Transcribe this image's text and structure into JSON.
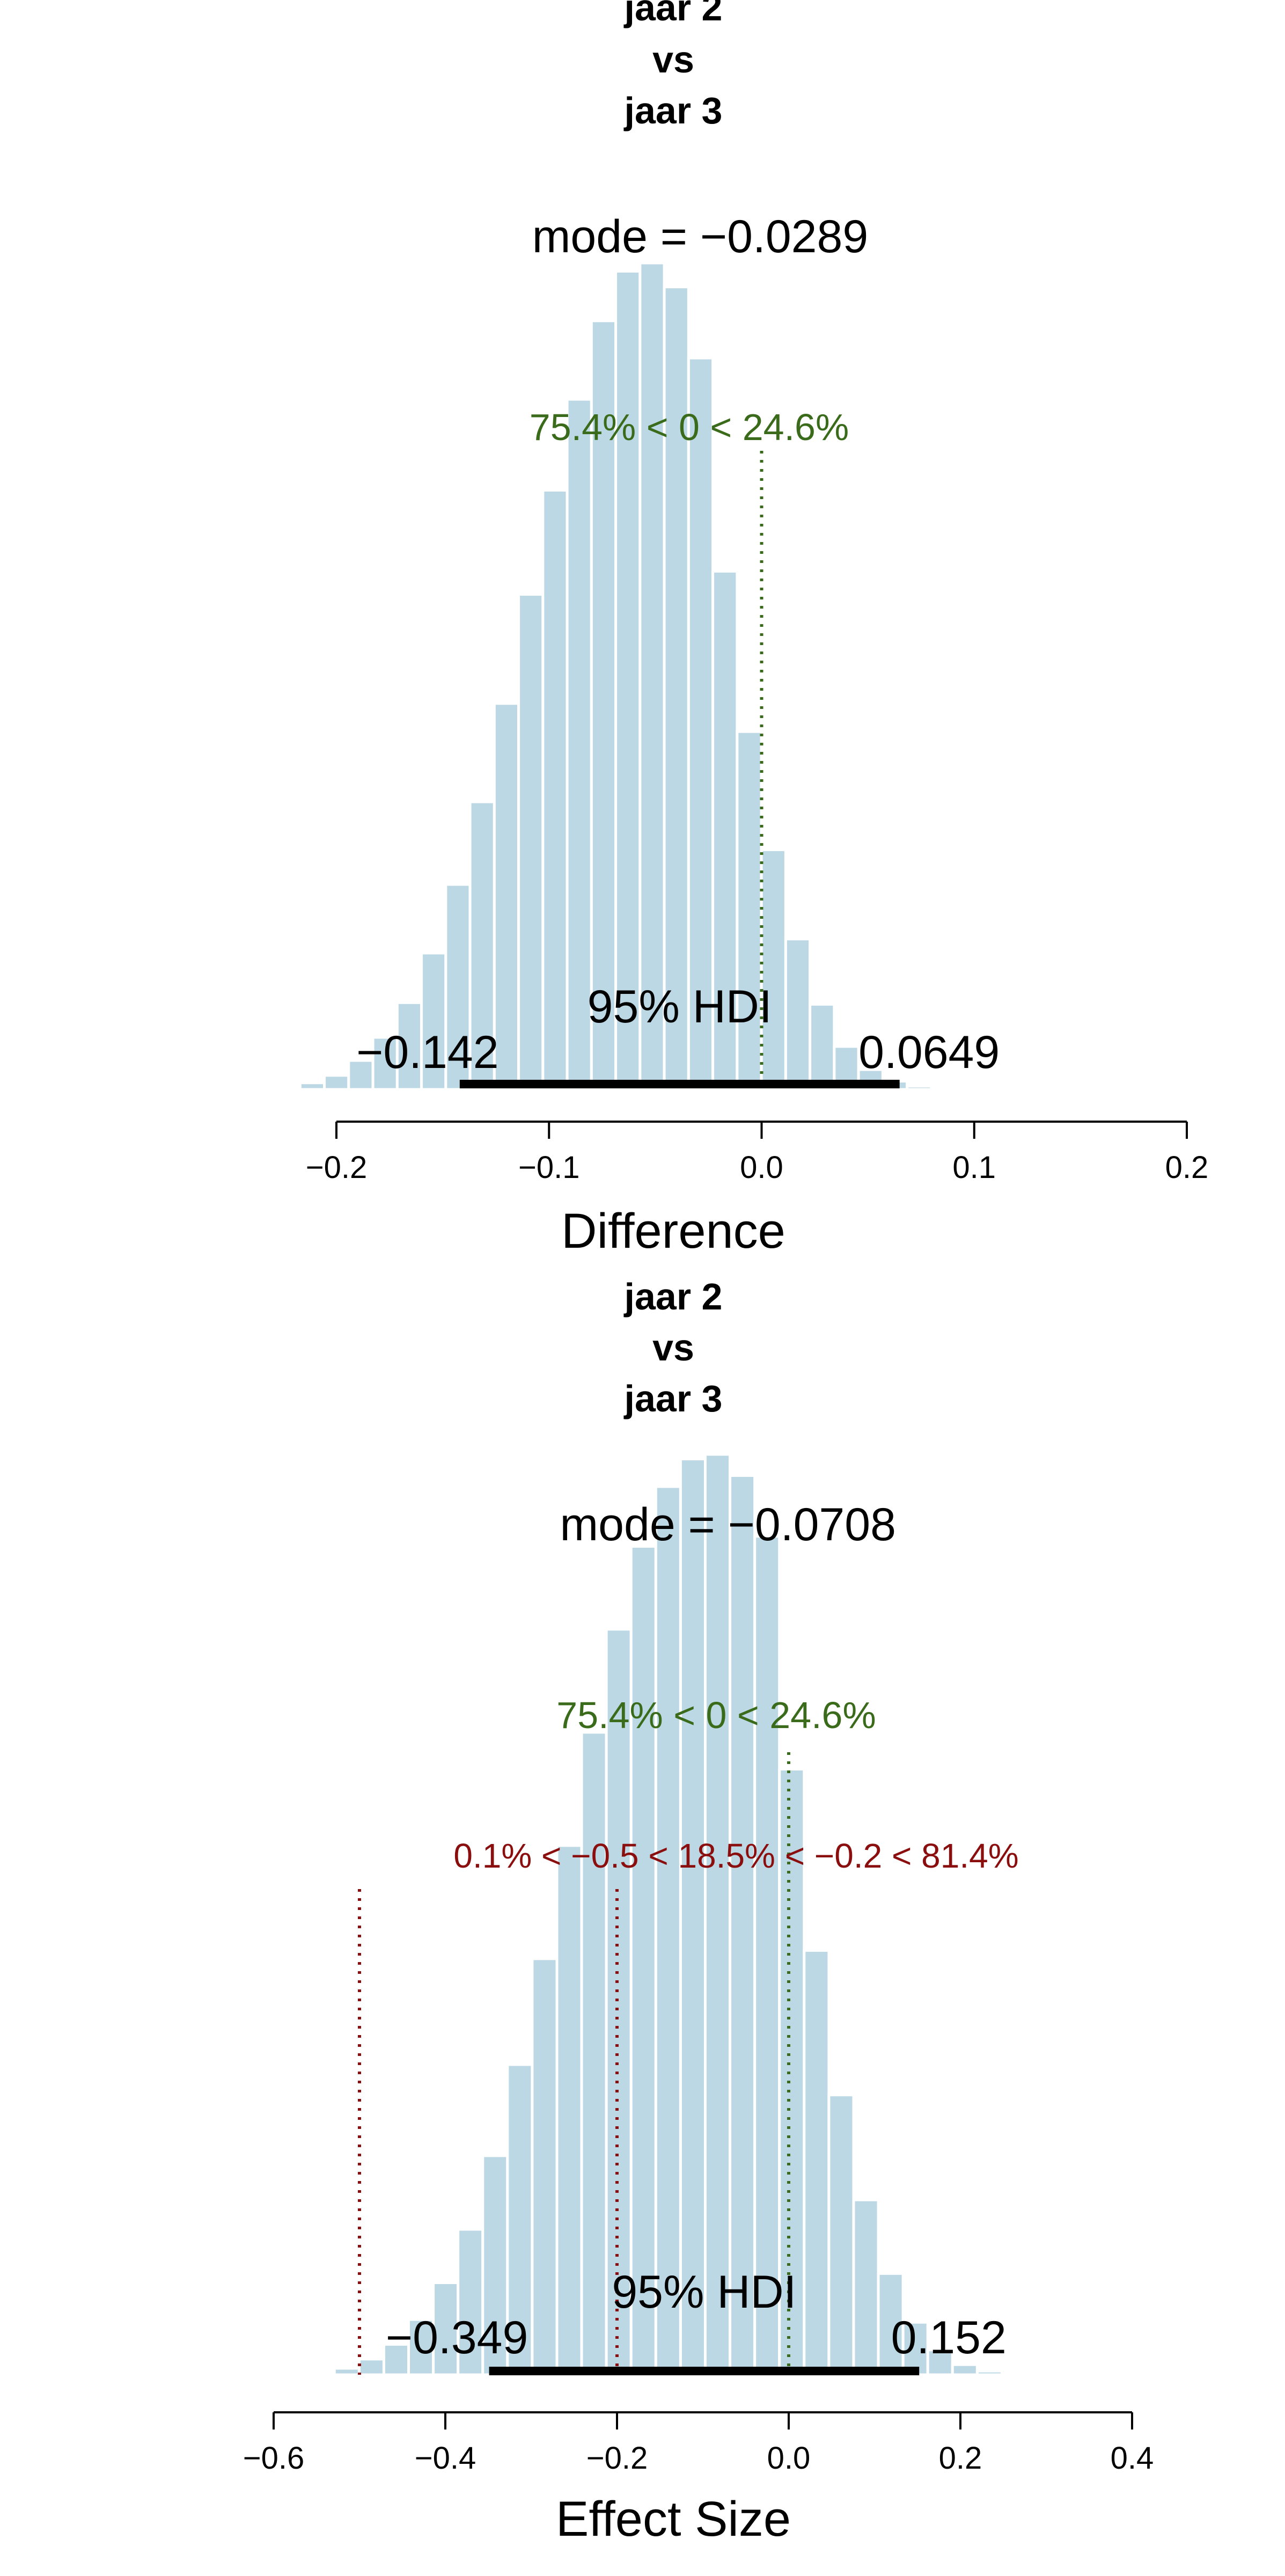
{
  "colors": {
    "bar": "#bcd8e4",
    "bar_edge": "#ffffff",
    "hdi": "#000000",
    "comparison": "#3a6b1a",
    "rope": "#8a0e0e",
    "axis": "#000000",
    "text": "#000000"
  },
  "chart_data": [
    {
      "type": "bar",
      "title_lines": [
        "jaar 2",
        "vs",
        "jaar 3"
      ],
      "mode_label": "mode = −0.0289",
      "mode": -0.0289,
      "comparison_label": "75.4% < 0 < 24.6%",
      "comparison_value": 0,
      "rope_label": "",
      "rope_lines": [],
      "hdi_label": "95% HDI",
      "hdi": [
        -0.142,
        0.0649
      ],
      "hdi_low_label": "−0.142",
      "hdi_high_label": "0.0649",
      "xlabel": "Difference",
      "xlim": [
        -0.2,
        0.2
      ],
      "xticks": [
        -0.2,
        -0.1,
        0.0,
        0.1,
        0.2
      ],
      "xtick_labels": [
        "−0.2",
        "−0.1",
        "0.0",
        "0.1",
        "0.2"
      ],
      "bin_width": 0.01142,
      "bin_start": -0.2285,
      "relative_heights": [
        0.003,
        0.008,
        0.017,
        0.035,
        0.063,
        0.105,
        0.165,
        0.248,
        0.348,
        0.467,
        0.599,
        0.725,
        0.835,
        0.93,
        0.99,
        1.0,
        0.971,
        0.885,
        0.627,
        0.433,
        0.29,
        0.182,
        0.103,
        0.052,
        0.024,
        0.01,
        0.004,
        0.001
      ]
    },
    {
      "type": "bar",
      "title_lines": [
        "jaar 2",
        "vs",
        "jaar 3"
      ],
      "mode_label": "mode = −0.0708",
      "mode": -0.0708,
      "comparison_label": "75.4% < 0 < 24.6%",
      "comparison_value": 0,
      "rope_label": "0.1% < −0.5 < 18.5% < −0.2 < 81.4%",
      "rope_lines": [
        -0.5,
        -0.2
      ],
      "hdi_label": "95% HDI",
      "hdi": [
        -0.349,
        0.152
      ],
      "hdi_low_label": "−0.349",
      "hdi_high_label": "0.152",
      "xlabel": "Effect Size",
      "xlim": [
        -0.6,
        0.4
      ],
      "xticks": [
        -0.6,
        -0.4,
        -0.2,
        0.0,
        0.2,
        0.4
      ],
      "xtick_labels": [
        "−0.6",
        "−0.4",
        "−0.2",
        "0.0",
        "0.2",
        "0.4"
      ],
      "bin_width": 0.0288,
      "bin_start": -0.558,
      "relative_heights": [
        0.002,
        0.007,
        0.017,
        0.033,
        0.06,
        0.1,
        0.158,
        0.238,
        0.337,
        0.452,
        0.575,
        0.698,
        0.81,
        0.9,
        0.965,
        0.995,
        1.0,
        0.977,
        0.911,
        0.658,
        0.461,
        0.304,
        0.19,
        0.11,
        0.057,
        0.027,
        0.011,
        0.004,
        0.001
      ]
    }
  ]
}
